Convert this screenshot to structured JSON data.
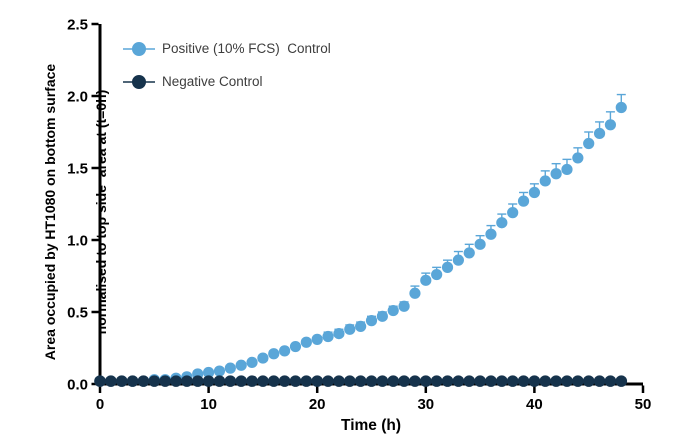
{
  "figure": {
    "background": "#ffffff"
  },
  "styles": {
    "axis_color": "#000000",
    "tick_label_color": "#000000",
    "legend_text_color": "#3d3d3d"
  },
  "chart_data": {
    "type": "scatter",
    "title": "",
    "xlabel": "Time (h)",
    "ylabel_lines": [
      "Area occupied by HT1080 on bottom surface",
      "normalised to top side  area at (t=0h)"
    ],
    "xlim": [
      0,
      50
    ],
    "ylim": [
      0,
      2.5
    ],
    "x_ticks": [
      0,
      10,
      20,
      30,
      40,
      50
    ],
    "y_ticks": [
      0,
      0.5,
      1,
      1.5,
      2,
      2.5
    ],
    "y_tick_labels": [
      "0.0",
      "0.5",
      "1.0",
      "1.5",
      "2.0",
      "2.5"
    ],
    "grid": false,
    "legend_position": "upper-left-inside",
    "marker": "circle",
    "error_bars": "upper-only",
    "x": [
      0,
      1,
      2,
      3,
      4,
      5,
      6,
      7,
      8,
      9,
      10,
      11,
      12,
      13,
      14,
      15,
      16,
      17,
      18,
      19,
      20,
      21,
      22,
      23,
      24,
      25,
      26,
      27,
      28,
      29,
      30,
      31,
      32,
      33,
      34,
      35,
      36,
      37,
      38,
      39,
      40,
      41,
      42,
      43,
      44,
      45,
      46,
      47,
      48
    ],
    "series": [
      {
        "name": "Positive (10% FCS)  Control",
        "color": "#5aa6d8",
        "values": [
          0.02,
          0.02,
          0.02,
          0.02,
          0.02,
          0.03,
          0.03,
          0.04,
          0.05,
          0.07,
          0.08,
          0.09,
          0.11,
          0.13,
          0.15,
          0.18,
          0.21,
          0.23,
          0.26,
          0.29,
          0.31,
          0.33,
          0.35,
          0.38,
          0.4,
          0.44,
          0.47,
          0.51,
          0.54,
          0.63,
          0.72,
          0.76,
          0.81,
          0.86,
          0.91,
          0.97,
          1.04,
          1.12,
          1.19,
          1.27,
          1.33,
          1.41,
          1.46,
          1.49,
          1.57,
          1.67,
          1.74,
          1.8,
          1.92
        ],
        "errors_upper": [
          0.02,
          0.02,
          0.02,
          0.02,
          0.02,
          0.02,
          0.02,
          0.02,
          0.02,
          0.02,
          0.02,
          0.02,
          0.02,
          0.02,
          0.02,
          0.02,
          0.02,
          0.02,
          0.02,
          0.02,
          0.02,
          0.03,
          0.03,
          0.03,
          0.03,
          0.03,
          0.03,
          0.03,
          0.03,
          0.05,
          0.05,
          0.05,
          0.05,
          0.06,
          0.06,
          0.06,
          0.06,
          0.06,
          0.06,
          0.06,
          0.06,
          0.07,
          0.07,
          0.07,
          0.07,
          0.08,
          0.08,
          0.09,
          0.09
        ]
      },
      {
        "name": "Negative Control",
        "color": "#16334c",
        "values": [
          0.02,
          0.02,
          0.02,
          0.02,
          0.02,
          0.02,
          0.02,
          0.02,
          0.02,
          0.02,
          0.02,
          0.02,
          0.02,
          0.02,
          0.02,
          0.02,
          0.02,
          0.02,
          0.02,
          0.02,
          0.02,
          0.02,
          0.02,
          0.02,
          0.02,
          0.02,
          0.02,
          0.02,
          0.02,
          0.02,
          0.02,
          0.02,
          0.02,
          0.02,
          0.02,
          0.02,
          0.02,
          0.02,
          0.02,
          0.02,
          0.02,
          0.02,
          0.02,
          0.02,
          0.02,
          0.02,
          0.02,
          0.02,
          0.02
        ],
        "errors_upper": [
          0,
          0,
          0,
          0,
          0,
          0,
          0,
          0,
          0,
          0,
          0,
          0,
          0,
          0,
          0,
          0,
          0,
          0,
          0,
          0,
          0,
          0,
          0,
          0,
          0,
          0,
          0,
          0,
          0,
          0,
          0,
          0,
          0,
          0,
          0,
          0,
          0,
          0,
          0,
          0,
          0,
          0,
          0,
          0,
          0,
          0,
          0,
          0,
          0
        ]
      }
    ]
  }
}
